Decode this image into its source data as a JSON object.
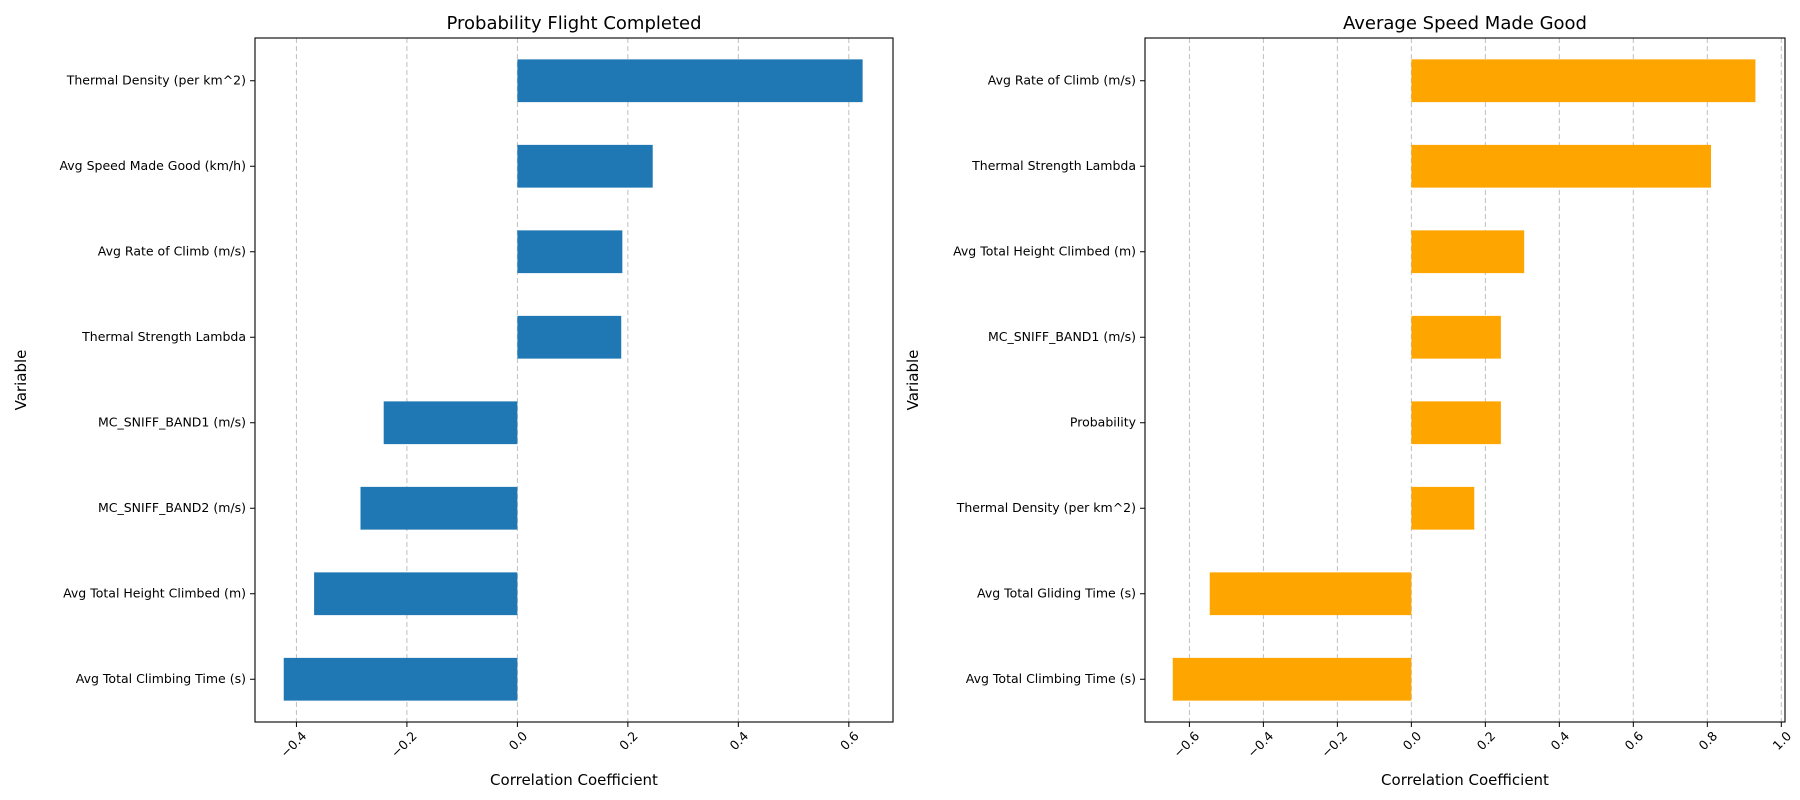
{
  "chart_data": [
    {
      "type": "bar",
      "orientation": "horizontal",
      "title": "Probability Flight Completed",
      "xlabel": "Correlation Coefficient",
      "ylabel": "Variable",
      "xlim": [
        -0.475,
        0.68
      ],
      "xticks": [
        -0.4,
        -0.2,
        0.0,
        0.2,
        0.4,
        0.6
      ],
      "xtick_labels": [
        "−0.4",
        "−0.2",
        "0.0",
        "0.2",
        "0.4",
        "0.6"
      ],
      "grid": "vertical dashed",
      "color": "#1f77b4",
      "categories": [
        "Thermal Density (per km^2)",
        "Avg Speed Made Good (km/h)",
        "Avg Rate of Climb (m/s)",
        "Thermal Strength Lambda",
        "MC_SNIFF_BAND1 (m/s)",
        "MC_SNIFF_BAND2 (m/s)",
        "Avg Total Height Climbed (m)",
        "Avg Total Climbing Time (s)"
      ],
      "values": [
        0.625,
        0.245,
        0.19,
        0.188,
        -0.242,
        -0.284,
        -0.368,
        -0.423
      ]
    },
    {
      "type": "bar",
      "orientation": "horizontal",
      "title": "Average Speed Made Good",
      "xlabel": "Correlation Coefficient",
      "ylabel": "Variable",
      "xlim": [
        -0.72,
        1.01
      ],
      "xticks": [
        -0.6,
        -0.4,
        -0.2,
        0.0,
        0.2,
        0.4,
        0.6,
        0.8,
        1.0
      ],
      "xtick_labels": [
        "−0.6",
        "−0.4",
        "−0.2",
        "0.0",
        "0.2",
        "0.4",
        "0.6",
        "0.8",
        "1.0"
      ],
      "grid": "vertical dashed",
      "color": "#ffa500",
      "categories": [
        "Avg Rate of Climb (m/s)",
        "Thermal Strength Lambda",
        "Avg Total Height Climbed (m)",
        "MC_SNIFF_BAND1 (m/s)",
        "Probability",
        "Thermal Density (per km^2)",
        "Avg Total Gliding Time (s)",
        "Avg Total Climbing Time (s)"
      ],
      "values": [
        0.93,
        0.81,
        0.305,
        0.242,
        0.242,
        0.17,
        -0.545,
        -0.645
      ]
    }
  ]
}
